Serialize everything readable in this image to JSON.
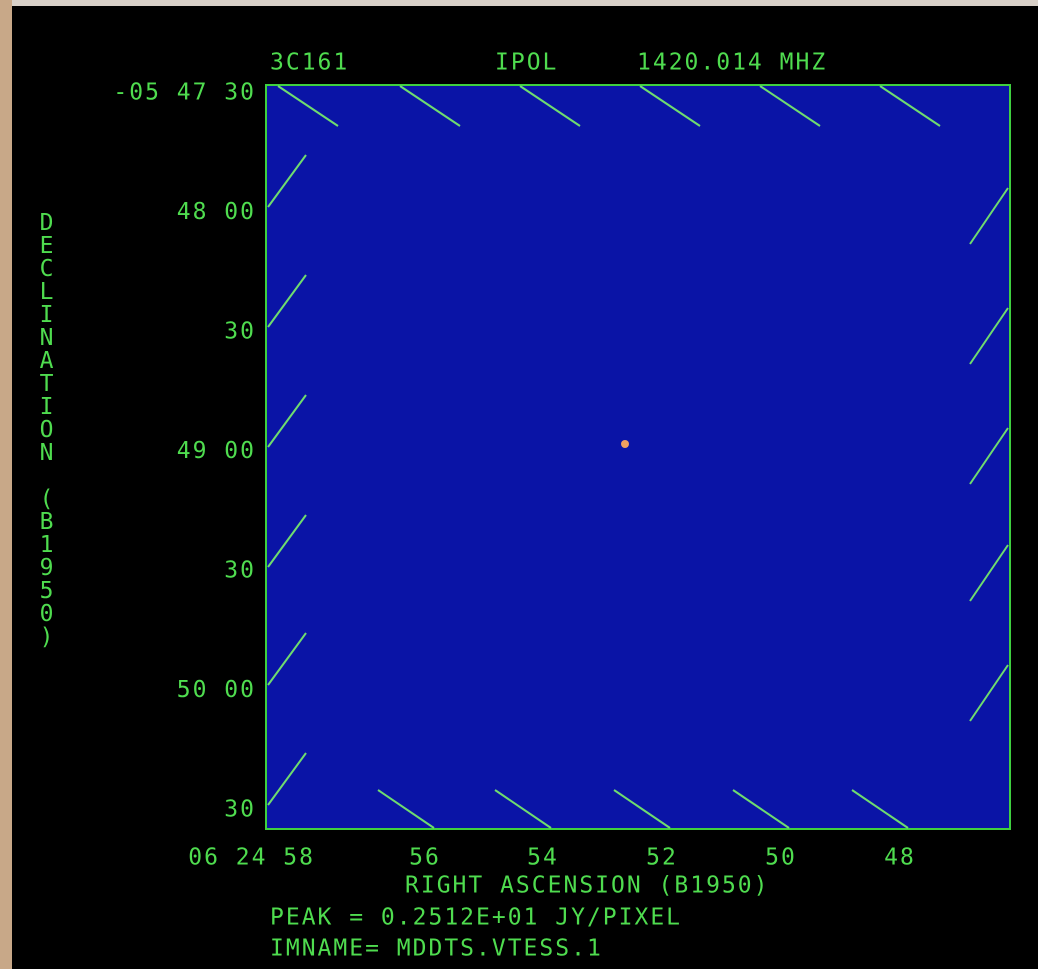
{
  "header": {
    "source": "3C161",
    "stokes": "IPOL",
    "frequency": "1420.014 MHZ"
  },
  "y_axis": {
    "title": "DECLINATION (B1950)",
    "labels": [
      "-05 47 30",
      "48 00",
      "30",
      "49 00",
      "30",
      "50 00",
      "30"
    ]
  },
  "x_axis": {
    "title": "RIGHT ASCENSION (B1950)",
    "labels": [
      "06 24 58",
      "56",
      "54",
      "52",
      "50",
      "48"
    ]
  },
  "footer": {
    "peak": "PEAK =  0.2512E+01 JY/PIXEL",
    "imname": "IMNAME= MDDTS.VTESS.1"
  }
}
